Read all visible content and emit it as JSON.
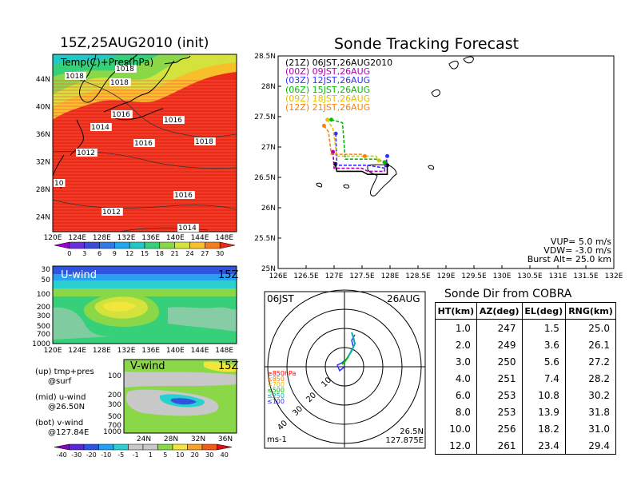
{
  "left_panel": {
    "title": "15Z,25AUG2010 (init)",
    "map_label": "Temp(C)+Pres(hPa)",
    "lon_ticks": [
      "120E",
      "124E",
      "128E",
      "132E",
      "136E",
      "140E",
      "144E",
      "148E"
    ],
    "lat_ticks": [
      "44N",
      "40N",
      "36N",
      "32N",
      "28N",
      "24N"
    ],
    "isobar_labels": [
      "1018",
      "1018",
      "1018",
      "1016",
      "1014",
      "1016",
      "1016",
      "1012",
      "1018",
      "10",
      "1016",
      "1012",
      "1014"
    ],
    "temp_colorbar": {
      "ticks": [
        "0",
        "3",
        "6",
        "9",
        "12",
        "15",
        "18",
        "21",
        "24",
        "27",
        "30"
      ],
      "colors": [
        "#9d00d6",
        "#6a2fdc",
        "#3a4bd8",
        "#2f79e8",
        "#20a8ee",
        "#22c8c8",
        "#36d07a",
        "#8ad848",
        "#d4e33c",
        "#f7bf2a",
        "#f57c1c",
        "#ea2b17"
      ]
    }
  },
  "u_wind_panel": {
    "label": "U-wind",
    "time": "15Z",
    "pres_ticks": [
      "30",
      "50",
      "100",
      "200",
      "300",
      "500",
      "700",
      "1000"
    ],
    "lon_ticks": [
      "120E",
      "124E",
      "128E",
      "132E",
      "136E",
      "140E",
      "144E",
      "148E"
    ]
  },
  "v_wind_panel": {
    "label": "V-wind",
    "time": "15Z",
    "pres_ticks": [
      "100",
      "200",
      "300",
      "500",
      "700",
      "1000"
    ],
    "lat_ticks": [
      "24N",
      "28N",
      "32N",
      "36N"
    ]
  },
  "notes": {
    "line1a": "(up) tmp+pres",
    "line1b": "@surf",
    "line2a": "(mid) u-wind",
    "line2b": "@26.50N",
    "line3a": "(bot) v-wind",
    "line3b": "@127.84E"
  },
  "wind_colorbar": {
    "ticks": [
      "-40",
      "-30",
      "-20",
      "-10",
      "-5",
      "-1",
      "1",
      "5",
      "10",
      "20",
      "30",
      "40"
    ],
    "colors": [
      "#8c00c8",
      "#5a28d8",
      "#2f55e0",
      "#28a0f0",
      "#2ad0d0",
      "#c8c8c8",
      "#c8c8c8",
      "#8ad848",
      "#f0e63c",
      "#f7a22a",
      "#f05a1c",
      "#d81414"
    ]
  },
  "tracking": {
    "title": "Sonde Tracking Forecast",
    "legend": [
      {
        "prefix": "(21Z)",
        "text": "06JST,26AUG2010",
        "color": "#000000"
      },
      {
        "prefix": "(00Z)",
        "text": "09JST,26AUG",
        "color": "#b000b0"
      },
      {
        "prefix": "(03Z)",
        "text": "12JST,26AUG",
        "color": "#3030ff"
      },
      {
        "prefix": "(06Z)",
        "text": "15JST,26AUG",
        "color": "#00c000"
      },
      {
        "prefix": "(09Z)",
        "text": "18JST,26AUG",
        "color": "#e0c000"
      },
      {
        "prefix": "(12Z)",
        "text": "21JST,26AUG",
        "color": "#ff8000"
      }
    ],
    "info": {
      "vup": "VUP=  5.0 m/s",
      "vdw": "VDW=  -3.0 m/s",
      "burst": "Burst Alt=  25.0 km"
    }
  },
  "polar": {
    "left_label": "06JST",
    "right_label": "26AUG",
    "bottom_left": "ms-1",
    "bottom_right_1": "26.5N",
    "bottom_right_2": "127.875E",
    "ring_labels": [
      "10",
      "20",
      "30",
      "40"
    ],
    "height_legend": [
      {
        "text": "≥850hPa",
        "color": "#ff0000"
      },
      {
        "text": "≤850",
        "color": "#ff8000"
      },
      {
        "text": "≤700",
        "color": "#e0c000"
      },
      {
        "text": "≤500",
        "color": "#00c000"
      },
      {
        "text": "≤250",
        "color": "#00b0b0"
      },
      {
        "text": "≤100",
        "color": "#3030ff"
      }
    ]
  },
  "sonde_dir": {
    "title": "Sonde Dir from COBRA",
    "headers": [
      "HT(km)",
      "AZ(deg)",
      "EL(deg)",
      "RNG(km)"
    ],
    "rows": [
      [
        "1.0",
        "247",
        "1.5",
        "25.0"
      ],
      [
        "2.0",
        "249",
        "3.6",
        "26.1"
      ],
      [
        "3.0",
        "250",
        "5.6",
        "27.2"
      ],
      [
        "4.0",
        "251",
        "7.4",
        "28.2"
      ],
      [
        "6.0",
        "253",
        "10.8",
        "30.2"
      ],
      [
        "8.0",
        "253",
        "13.9",
        "31.8"
      ],
      [
        "10.0",
        "256",
        "18.2",
        "31.0"
      ],
      [
        "12.0",
        "261",
        "23.4",
        "29.4"
      ]
    ]
  },
  "chart_data": {
    "type": "line",
    "title": "Sonde Tracking Forecast",
    "xlabel": "",
    "ylabel": "",
    "xlim": [
      126,
      132
    ],
    "ylim": [
      25,
      28.5
    ],
    "x_ticks": [
      "126E",
      "126.5E",
      "127E",
      "127.5E",
      "128E",
      "128.5E",
      "129E",
      "129.5E",
      "130E",
      "130.5E",
      "131E",
      "131.5E",
      "132E"
    ],
    "y_ticks": [
      "25N",
      "25.5N",
      "26N",
      "26.5N",
      "27N",
      "27.5N",
      "28N",
      "28.5N"
    ],
    "series": [
      {
        "name": "06JST,26AUG2010",
        "color": "#000000",
        "x": [
          127.02,
          127.05,
          127.5,
          127.6,
          127.95,
          127.95
        ],
        "y": [
          26.72,
          26.6,
          26.6,
          26.55,
          26.55,
          26.7
        ]
      },
      {
        "name": "09JST,26AUG",
        "color": "#b000b0",
        "x": [
          126.98,
          127.0,
          127.5,
          127.6,
          127.9,
          127.92
        ],
        "y": [
          26.92,
          26.65,
          26.65,
          26.6,
          26.6,
          26.75
        ]
      },
      {
        "name": "12JST,26AUG",
        "color": "#3030ff",
        "x": [
          127.03,
          127.05,
          127.6,
          127.92,
          127.95
        ],
        "y": [
          27.22,
          26.7,
          26.7,
          26.65,
          26.85
        ]
      },
      {
        "name": "15JST,26AUG",
        "color": "#00c000",
        "x": [
          126.95,
          127.15,
          127.2,
          127.75,
          127.9
        ],
        "y": [
          27.45,
          27.4,
          26.8,
          26.8,
          26.75
        ]
      },
      {
        "name": "18JST,26AUG",
        "color": "#e0c000",
        "x": [
          126.88,
          126.98,
          127.05,
          127.5,
          127.75,
          127.8
        ],
        "y": [
          27.45,
          27.3,
          26.85,
          26.85,
          26.85,
          26.78
        ]
      },
      {
        "name": "21JST,26AUG",
        "color": "#ff8000",
        "x": [
          126.82,
          126.9,
          126.95,
          127.5,
          127.55
        ],
        "y": [
          27.35,
          27.25,
          26.88,
          26.88,
          26.85
        ]
      }
    ]
  }
}
